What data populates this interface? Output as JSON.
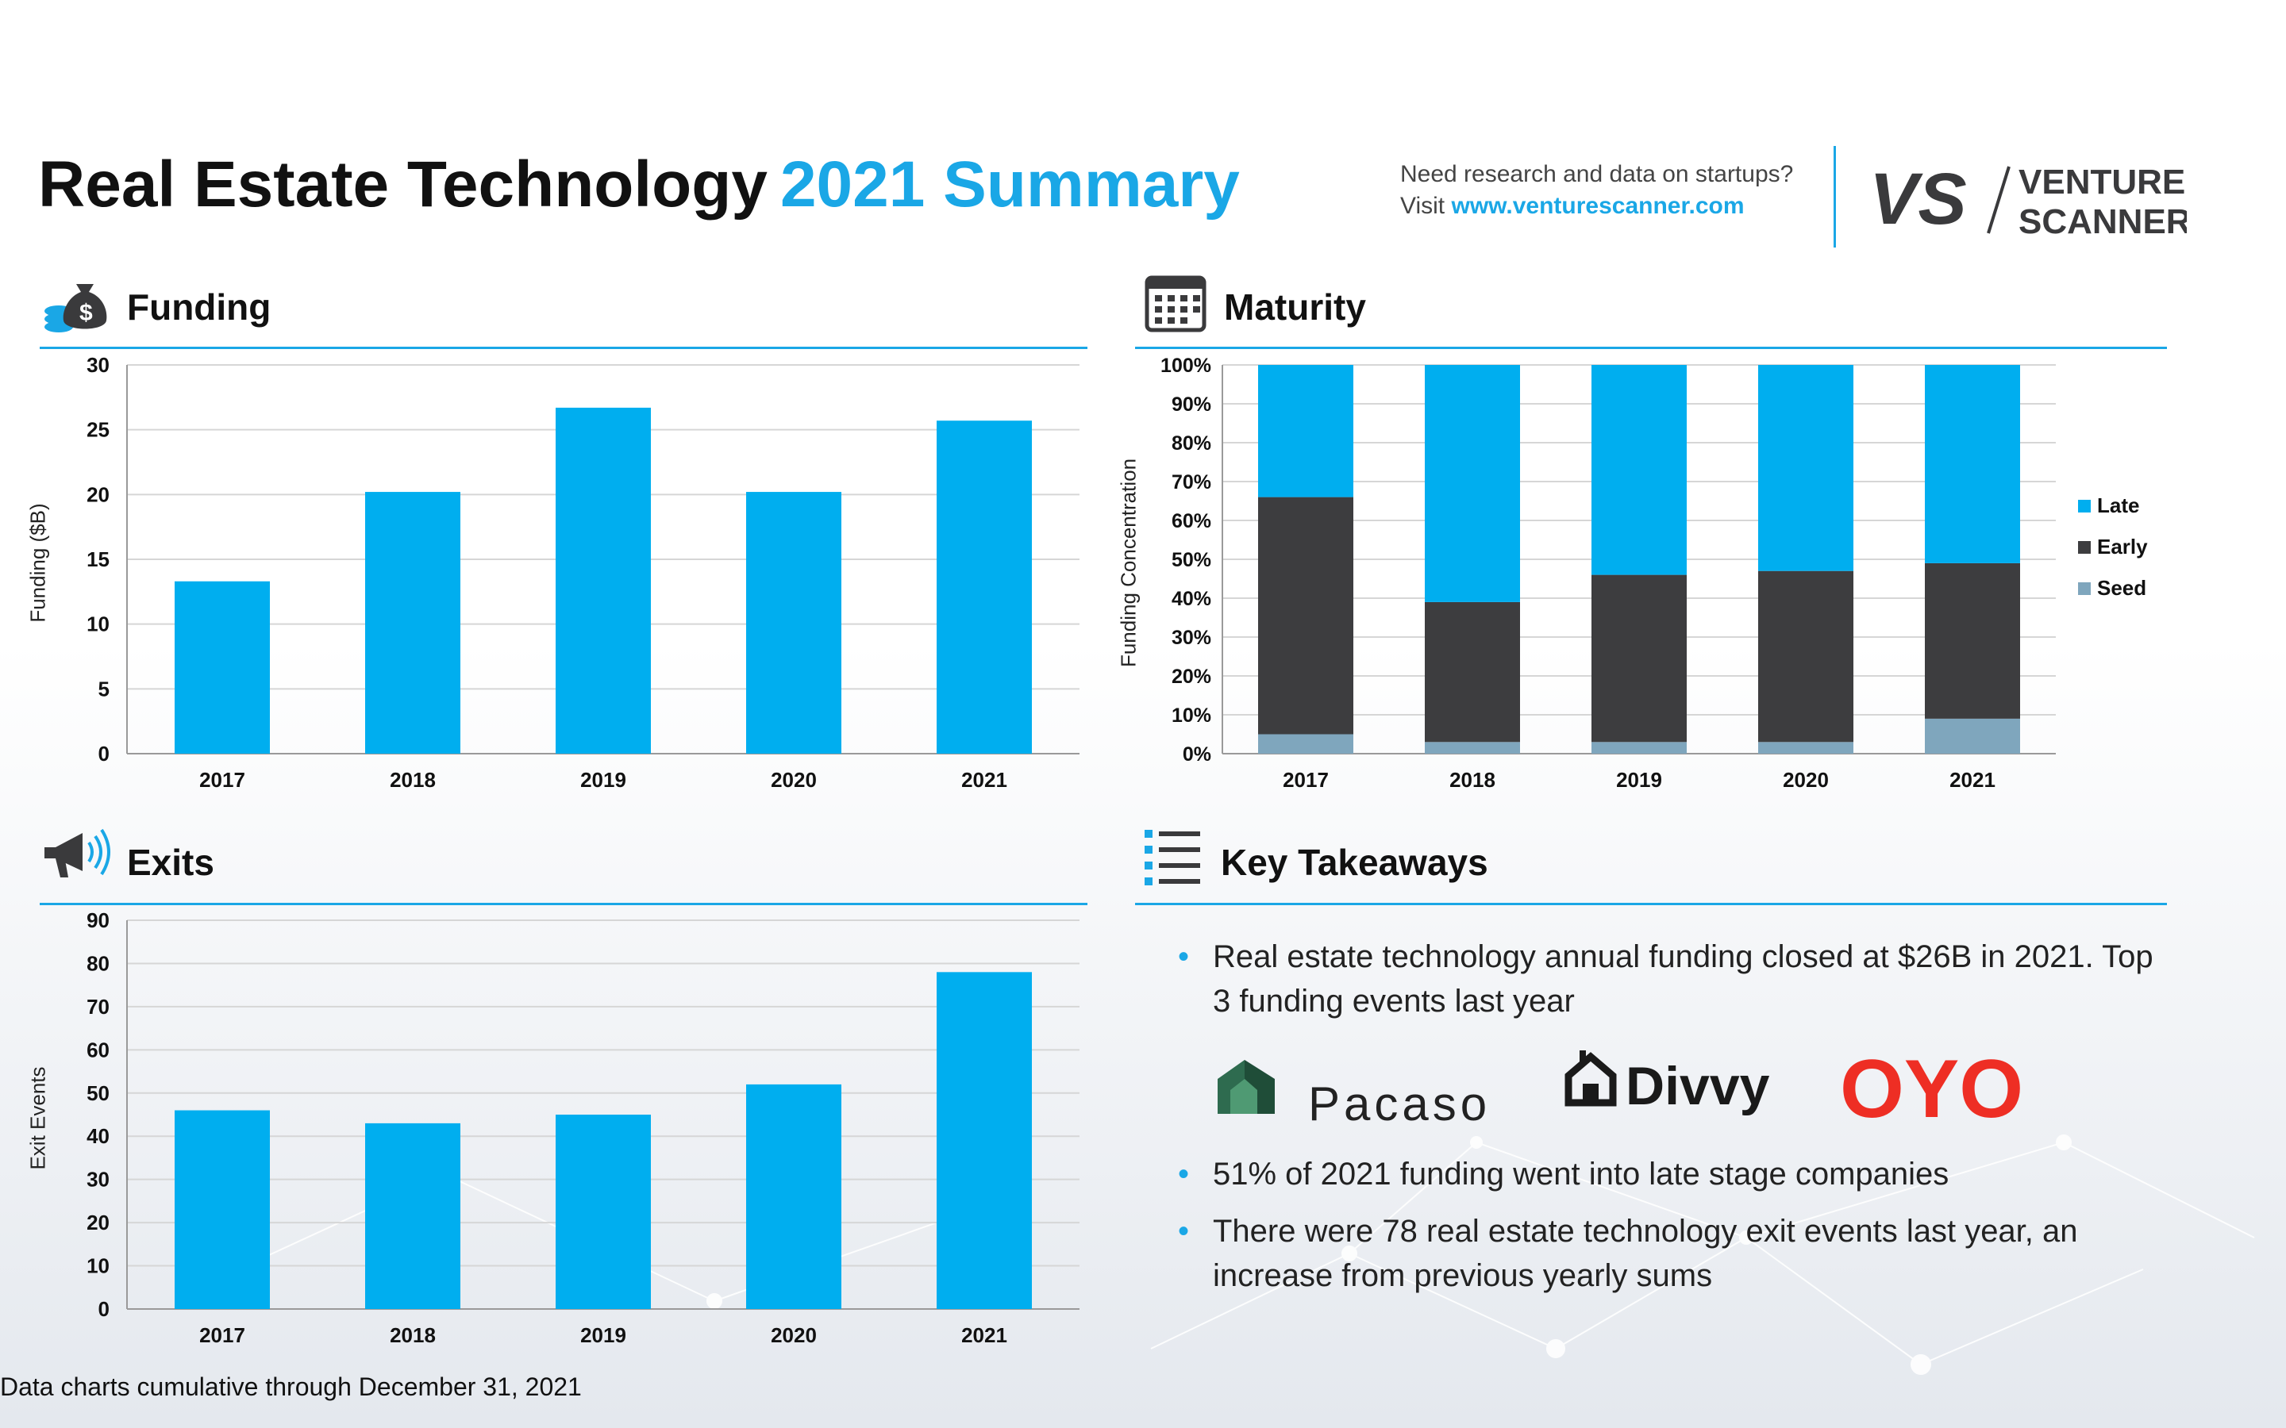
{
  "header": {
    "title_main": "Real Estate Technology",
    "title_accent": "2021 Summary",
    "promo_line1": "Need research and data on startups?",
    "promo_visit": "Visit",
    "promo_url": "www.venturescanner.com",
    "logo_mark": "VS",
    "logo_line1": "VENTURE",
    "logo_line2": "SCANNER"
  },
  "sections": {
    "funding": "Funding",
    "maturity": "Maturity",
    "exits": "Exits",
    "takeaways": "Key Takeaways"
  },
  "takeaways": {
    "item1": "Real estate technology annual funding closed at $26B in 2021. Top 3 funding events last year",
    "item2": "51% of 2021 funding went into late stage companies",
    "item3": "There were 78 real estate technology exit events last year, an increase from previous yearly sums",
    "logos": [
      "Pacaso",
      "Divvy",
      "OYO"
    ]
  },
  "footnote": "Data charts cumulative through December 31, 2021",
  "colors": {
    "accent": "#1aa7e6",
    "bar": "#00aeef",
    "early": "#3d3d3f",
    "seed": "#7fa6bd",
    "oyo": "#ee2e24",
    "pacaso": "#2e6b4f"
  },
  "chart_data": [
    {
      "type": "bar",
      "ylabel": "Funding ($B)",
      "categories": [
        "2017",
        "2018",
        "2019",
        "2020",
        "2021"
      ],
      "values": [
        13.3,
        20.2,
        26.7,
        20.2,
        25.7
      ],
      "ylim": [
        0,
        30
      ],
      "yticks": [
        0,
        5,
        10,
        15,
        20,
        25,
        30
      ],
      "grid": true
    },
    {
      "type": "bar",
      "stacked": true,
      "ylabel": "Funding Concentration",
      "categories": [
        "2017",
        "2018",
        "2019",
        "2020",
        "2021"
      ],
      "series": [
        {
          "name": "Seed",
          "values": [
            5,
            3,
            3,
            3,
            9
          ]
        },
        {
          "name": "Early",
          "values": [
            61,
            36,
            43,
            44,
            40
          ]
        },
        {
          "name": "Late",
          "values": [
            34,
            61,
            54,
            53,
            51
          ]
        }
      ],
      "legend_order": [
        "Late",
        "Early",
        "Seed"
      ],
      "ylim": [
        0,
        100
      ],
      "yticks": [
        "0%",
        "10%",
        "20%",
        "30%",
        "40%",
        "50%",
        "60%",
        "70%",
        "80%",
        "90%",
        "100%"
      ],
      "legend": "right",
      "grid": true
    },
    {
      "type": "bar",
      "ylabel": "Exit Events",
      "categories": [
        "2017",
        "2018",
        "2019",
        "2020",
        "2021"
      ],
      "values": [
        46,
        43,
        45,
        52,
        78
      ],
      "ylim": [
        0,
        90
      ],
      "yticks": [
        0,
        10,
        20,
        30,
        40,
        50,
        60,
        70,
        80,
        90
      ],
      "grid": true
    }
  ]
}
